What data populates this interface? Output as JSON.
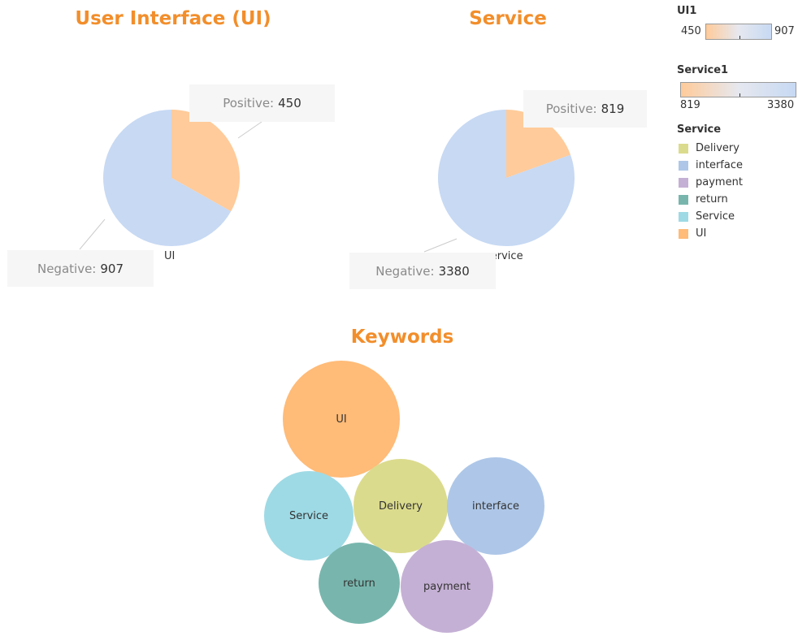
{
  "titles": {
    "ui": "User Interface (UI)",
    "service": "Service",
    "keywords": "Keywords"
  },
  "colors": {
    "positive": "#ffcb9a",
    "negative": "#c7d9f3",
    "title": "#f28e2b"
  },
  "chart_data": [
    {
      "type": "pie",
      "title": "User Interface (UI)",
      "category_label": "UI",
      "slices": [
        {
          "name": "Positive",
          "value": 450
        },
        {
          "name": "Negative",
          "value": 907
        }
      ]
    },
    {
      "type": "pie",
      "title": "Service",
      "category_label": "service",
      "slices": [
        {
          "name": "Positive",
          "value": 819
        },
        {
          "name": "Negative",
          "value": 3380
        }
      ]
    },
    {
      "type": "bubble",
      "title": "Keywords",
      "bubbles": [
        {
          "label": "UI",
          "color": "#ffbb78"
        },
        {
          "label": "Service",
          "color": "#9edae5"
        },
        {
          "label": "Delivery",
          "color": "#dbdb8d"
        },
        {
          "label": "interface",
          "color": "#aec7e8"
        },
        {
          "label": "return",
          "color": "#78b6ad"
        },
        {
          "label": "payment",
          "color": "#c5b0d5"
        }
      ]
    }
  ],
  "tooltips": {
    "ui_positive": {
      "label": "Positive:",
      "value": "450"
    },
    "ui_negative": {
      "label": "Negative:",
      "value": "907"
    },
    "service_positive": {
      "label": "Positive:",
      "value": "819"
    },
    "service_negative": {
      "label": "Negative:",
      "value": "3380"
    }
  },
  "legends": {
    "ui1": {
      "title": "UI1",
      "min": "450",
      "max": "907"
    },
    "service1": {
      "title": "Service1",
      "min": "819",
      "max": "3380"
    },
    "service": {
      "title": "Service",
      "items": [
        {
          "label": "Delivery",
          "color": "#dbdb8d"
        },
        {
          "label": "interface",
          "color": "#aec7e8"
        },
        {
          "label": "payment",
          "color": "#c5b0d5"
        },
        {
          "label": "return",
          "color": "#78b6ad"
        },
        {
          "label": "Service",
          "color": "#9edae5"
        },
        {
          "label": "UI",
          "color": "#ffbb78"
        }
      ]
    }
  }
}
